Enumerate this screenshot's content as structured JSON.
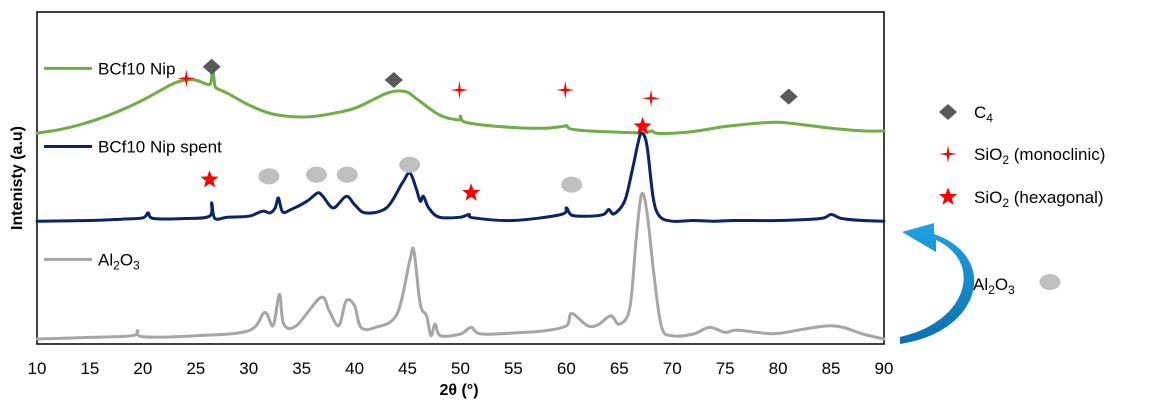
{
  "chart_data": {
    "type": "line",
    "xlabel": "2θ (°)",
    "ylabel": "Intenisty (a.u)",
    "xlim": [
      10,
      90
    ],
    "ylim": [
      0,
      10
    ],
    "xticks": [
      "10",
      "15",
      "20",
      "25",
      "30",
      "35",
      "40",
      "45",
      "50",
      "55",
      "60",
      "65",
      "70",
      "75",
      "80",
      "85",
      "90"
    ],
    "series": [
      {
        "name": "BCf10 Nip",
        "color": "#70AD47",
        "x": [
          10,
          12,
          14,
          16,
          18,
          20,
          22,
          23,
          24,
          25,
          26,
          26.4,
          26.6,
          26.8,
          27,
          28,
          30,
          32,
          34,
          36,
          38,
          40,
          42,
          43,
          44,
          45,
          46,
          48,
          49.8,
          50,
          50.3,
          52,
          55,
          58,
          59.8,
          60,
          60.4,
          62,
          65,
          67,
          67.9,
          68.1,
          68.5,
          70,
          72,
          75,
          78,
          80,
          82,
          85,
          88,
          90
        ],
        "y": [
          6.35,
          6.45,
          6.6,
          6.8,
          7.05,
          7.35,
          7.7,
          7.86,
          7.95,
          7.95,
          7.83,
          7.85,
          8.25,
          7.78,
          7.7,
          7.55,
          7.2,
          6.95,
          6.85,
          6.85,
          6.95,
          7.1,
          7.4,
          7.55,
          7.62,
          7.58,
          7.35,
          6.9,
          6.75,
          6.86,
          6.7,
          6.6,
          6.52,
          6.5,
          6.56,
          6.58,
          6.48,
          6.42,
          6.38,
          6.36,
          6.4,
          6.42,
          6.35,
          6.35,
          6.4,
          6.55,
          6.65,
          6.68,
          6.62,
          6.5,
          6.42,
          6.42
        ]
      },
      {
        "name": "BCf10 Nip spent",
        "color": "#0B2467",
        "x": [
          10,
          15,
          18,
          20,
          20.5,
          21,
          24,
          26.3,
          26.5,
          26.8,
          28,
          30,
          31.3,
          32,
          32.5,
          32.8,
          33.2,
          34,
          35.5,
          36.5,
          37,
          38,
          39.2,
          40,
          41,
          43,
          44.5,
          45.2,
          45.8,
          46.2,
          46.5,
          47,
          48,
          50,
          50.8,
          51.2,
          55,
          59.5,
          60,
          60.5,
          62,
          63.5,
          64,
          64.5,
          65.5,
          66.2,
          66.8,
          67.1,
          67.6,
          68.2,
          68.8,
          70,
          72,
          74,
          76,
          80,
          84,
          85,
          86,
          88,
          90
        ],
        "y": [
          3.7,
          3.72,
          3.76,
          3.8,
          3.95,
          3.78,
          3.78,
          3.85,
          4.25,
          3.78,
          3.82,
          3.85,
          4.0,
          3.95,
          4.1,
          4.4,
          3.98,
          4.05,
          4.3,
          4.55,
          4.45,
          4.1,
          4.45,
          4.2,
          3.95,
          4.1,
          4.85,
          5.15,
          4.7,
          4.3,
          4.45,
          4.1,
          3.82,
          3.82,
          3.9,
          3.8,
          3.72,
          3.9,
          4.1,
          3.88,
          3.85,
          3.9,
          4.05,
          3.92,
          4.3,
          5.2,
          6.1,
          6.35,
          6.0,
          4.4,
          3.85,
          3.7,
          3.72,
          3.7,
          3.72,
          3.72,
          3.78,
          3.9,
          3.78,
          3.72,
          3.7
        ]
      },
      {
        "name": "Al2O3",
        "color": "#A6A6A6",
        "x": [
          10,
          15,
          19,
          19.5,
          20,
          25,
          30,
          31.5,
          32.3,
          32.9,
          33.3,
          34.5,
          36.8,
          37.6,
          38.5,
          39.2,
          40,
          40.6,
          42,
          44,
          45.2,
          45.6,
          46.2,
          46.8,
          47.2,
          47.6,
          48.1,
          50,
          51,
          52,
          56,
          58,
          60,
          60.5,
          62,
          63,
          64.2,
          65,
          66,
          66.6,
          67.1,
          67.6,
          68.3,
          69,
          70,
          72,
          73.5,
          75,
          76,
          78,
          80,
          85,
          88,
          90
        ],
        "y": [
          0.15,
          0.2,
          0.25,
          0.4,
          0.22,
          0.25,
          0.4,
          0.95,
          0.55,
          1.5,
          0.6,
          0.55,
          1.4,
          1.0,
          0.55,
          1.3,
          1.15,
          0.5,
          0.5,
          0.9,
          2.5,
          2.8,
          1.2,
          0.85,
          0.25,
          0.6,
          0.25,
          0.3,
          0.5,
          0.3,
          0.35,
          0.4,
          0.55,
          0.92,
          0.55,
          0.58,
          0.85,
          0.6,
          1.1,
          3.2,
          4.5,
          4.0,
          2.0,
          0.5,
          0.25,
          0.3,
          0.5,
          0.35,
          0.42,
          0.35,
          0.32,
          0.55,
          0.3,
          0.15
        ]
      }
    ],
    "series_labels": [
      {
        "text": "BCf10 Nip",
        "x": 16.5,
        "y": 8.15
      },
      {
        "text": "BCf10 Nip spent",
        "x": 16.5,
        "y": 5.8
      },
      {
        "text": "Al",
        "sub1": "2",
        "mid": "O",
        "sub2": "3",
        "x": 10.8,
        "y": 2.4
      }
    ],
    "markers": [
      {
        "type": "diamond",
        "color": "#595959",
        "x": 26.5,
        "y": 8.35
      },
      {
        "type": "diamond",
        "color": "#595959",
        "x": 43.7,
        "y": 7.95
      },
      {
        "type": "diamond",
        "color": "#595959",
        "x": 81.0,
        "y": 7.45
      },
      {
        "type": "thin-star",
        "color": "#FF0000",
        "x": 24.1,
        "y": 8.0
      },
      {
        "type": "thin-star",
        "color": "#FF0000",
        "x": 49.9,
        "y": 7.65
      },
      {
        "type": "thin-star",
        "color": "#FF0000",
        "x": 59.9,
        "y": 7.65
      },
      {
        "type": "thin-star",
        "color": "#FF0000",
        "x": 68.0,
        "y": 7.4
      },
      {
        "type": "star",
        "color": "#FF0000",
        "x": 26.3,
        "y": 4.95
      },
      {
        "type": "star",
        "color": "#FF0000",
        "x": 51.0,
        "y": 4.55
      },
      {
        "type": "star",
        "color": "#FF0000",
        "x": 67.2,
        "y": 6.55
      },
      {
        "type": "ellipse",
        "color": "#BFBFBF",
        "x": 31.9,
        "y": 5.05
      },
      {
        "type": "ellipse",
        "color": "#BFBFBF",
        "x": 36.4,
        "y": 5.1
      },
      {
        "type": "ellipse",
        "color": "#BFBFBF",
        "x": 39.3,
        "y": 5.1
      },
      {
        "type": "ellipse",
        "color": "#BFBFBF",
        "x": 45.2,
        "y": 5.4
      },
      {
        "type": "ellipse",
        "color": "#BFBFBF",
        "x": 60.5,
        "y": 4.8
      }
    ],
    "legend": {
      "placement": "right",
      "entries": [
        {
          "marker": "diamond",
          "color": "#595959",
          "text": "C",
          "sub": "4",
          "rest": ""
        },
        {
          "marker": "thin-star",
          "color": "#FF0000",
          "text": "SiO",
          "sub": "2",
          "rest": " (monoclinic)"
        },
        {
          "marker": "star",
          "color": "#FF0000",
          "text": "SiO",
          "sub": "2",
          "rest": " (hexagonal)"
        }
      ],
      "al2o3_key": {
        "text": "Al",
        "sub1": "2",
        "mid": "O",
        "sub2": "3",
        "marker": "ellipse",
        "color": "#BFBFBF"
      }
    },
    "arrow": {
      "color": "#1FA3E0",
      "direction": "up"
    }
  }
}
